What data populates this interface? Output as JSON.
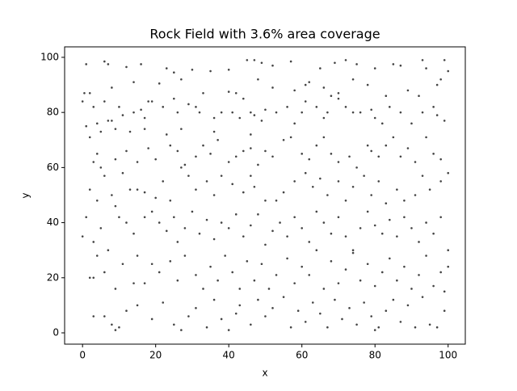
{
  "chart_data": {
    "type": "scatter",
    "title": "Rock Field with 3.6% area coverage",
    "x_label": "x",
    "y_label": "y",
    "color": "#444444",
    "x": [
      1,
      6,
      7,
      12,
      16,
      23,
      25,
      30,
      35,
      40,
      45,
      47,
      49,
      52,
      57,
      65,
      69,
      72,
      75,
      80,
      85,
      87,
      93,
      94,
      99,
      100,
      0.5,
      8,
      14,
      21,
      27,
      33,
      40,
      42,
      48,
      52,
      58,
      61,
      62,
      66,
      68,
      70,
      74,
      78,
      83,
      89,
      92,
      97,
      98,
      2,
      19,
      25,
      44,
      0,
      3,
      6,
      10,
      11,
      14,
      16,
      17,
      18,
      22,
      26,
      29,
      31,
      32,
      36,
      38,
      41,
      43,
      46,
      47,
      49,
      50,
      53,
      56,
      58,
      60,
      61,
      64,
      66,
      67,
      70,
      72,
      74,
      76,
      79,
      80,
      82,
      84,
      87,
      90,
      93,
      96,
      97,
      99,
      1,
      4,
      7,
      9,
      2,
      5,
      8,
      13,
      17,
      23,
      27,
      3,
      4,
      5,
      9,
      12,
      15,
      18,
      20,
      24,
      26,
      28,
      31,
      33,
      35,
      37,
      40,
      42,
      44,
      46,
      48,
      50,
      52,
      55,
      57,
      60,
      62,
      64,
      66,
      68,
      70,
      73,
      75,
      78,
      79,
      81,
      83,
      85,
      87,
      89,
      91,
      94,
      96,
      98,
      36,
      46,
      2,
      6,
      8,
      11,
      13,
      15,
      17,
      20,
      22,
      24,
      27,
      29,
      31,
      34,
      36,
      38,
      41,
      44,
      46,
      47,
      50,
      53,
      55,
      58,
      61,
      63,
      65,
      67,
      70,
      72,
      74,
      77,
      79,
      81,
      83,
      86,
      88,
      91,
      93,
      95,
      98,
      100,
      9,
      4,
      0,
      3,
      5,
      7,
      10,
      12,
      14,
      17,
      19,
      21,
      23,
      25,
      26,
      28,
      30,
      32,
      34,
      36,
      38,
      40,
      42,
      44,
      46,
      48,
      50,
      52,
      54,
      56,
      58,
      60,
      62,
      64,
      66,
      68,
      70,
      72,
      74,
      76,
      78,
      80,
      82,
      84,
      86,
      88,
      90,
      92,
      94,
      96,
      98,
      100,
      1,
      2,
      4,
      6,
      9,
      11,
      14,
      17,
      19,
      21,
      24,
      26,
      28,
      31,
      33,
      35,
      37,
      39,
      41,
      43,
      45,
      47,
      49,
      51,
      53,
      56,
      58,
      60,
      62,
      64,
      66,
      68,
      70,
      72,
      74,
      76,
      78,
      80,
      82,
      84,
      86,
      88,
      90,
      92,
      94,
      96,
      98,
      99,
      100,
      3,
      15,
      3,
      6,
      8,
      9,
      10,
      12,
      15,
      19,
      22,
      25,
      27,
      29,
      31,
      34,
      36,
      38,
      40,
      42,
      43,
      46,
      48,
      50,
      52,
      55,
      57,
      59,
      61,
      63,
      65,
      67,
      69,
      71,
      73,
      75,
      77,
      79,
      80,
      81,
      83,
      85,
      87,
      89,
      91,
      93,
      95,
      97,
      99
    ],
    "values": [
      97.5,
      98.5,
      97.5,
      96.5,
      97.5,
      96,
      94.5,
      95.5,
      95,
      95.5,
      99,
      99,
      98,
      97,
      98.5,
      96,
      98,
      99,
      97.5,
      96,
      97.5,
      97,
      99,
      96,
      99,
      95,
      87,
      89,
      91,
      90.5,
      92,
      87,
      87.5,
      87,
      92,
      89,
      88,
      90,
      91,
      89,
      86,
      87,
      92,
      90,
      86,
      88,
      86,
      90,
      92,
      87,
      84,
      85,
      85,
      84,
      82,
      84,
      82,
      79,
      80,
      81,
      78,
      84,
      82,
      80,
      83,
      82,
      80,
      78,
      80,
      80,
      78,
      80,
      79,
      77,
      81,
      80,
      82,
      76,
      80,
      84,
      82,
      78,
      80,
      85,
      82,
      80,
      80,
      81,
      78,
      76,
      82,
      80,
      76,
      80,
      82,
      79,
      77,
      75,
      76,
      77,
      74,
      71,
      73,
      77,
      73,
      74,
      72,
      74,
      62,
      65,
      60,
      63,
      66,
      62,
      67,
      63,
      68,
      66,
      61,
      64,
      68,
      65,
      70,
      62,
      64,
      66,
      67,
      61,
      66,
      64,
      70,
      71,
      65,
      63,
      68,
      71,
      65,
      62,
      64,
      60,
      68,
      66,
      64,
      68,
      71,
      64,
      67,
      62,
      71,
      65,
      63,
      73,
      72,
      52,
      57,
      50,
      58,
      52,
      52,
      51,
      49,
      55,
      48,
      60,
      57,
      52,
      55,
      50,
      57,
      54,
      51,
      57,
      53,
      48,
      48,
      51,
      55,
      58,
      53,
      56,
      50,
      55,
      48,
      53,
      57,
      50,
      55,
      47,
      52,
      48,
      50,
      57,
      52,
      55,
      58,
      46,
      48,
      35,
      33,
      38,
      30,
      42,
      40,
      36,
      42,
      44,
      40,
      37,
      42,
      33,
      38,
      44,
      36,
      41,
      34,
      40,
      38,
      43,
      35,
      39,
      43,
      32,
      37,
      40,
      35,
      42,
      38,
      33,
      44,
      40,
      36,
      42,
      35,
      30,
      38,
      44,
      39,
      36,
      41,
      35,
      42,
      38,
      33,
      40,
      36,
      42,
      30,
      42,
      20,
      28,
      22,
      16,
      25,
      18,
      18,
      25,
      22,
      26,
      19,
      28,
      21,
      16,
      24,
      19,
      28,
      22,
      16,
      26,
      19,
      25,
      16,
      21,
      27,
      18,
      24,
      21,
      30,
      16,
      26,
      18,
      23,
      29,
      19,
      25,
      17,
      22,
      27,
      19,
      24,
      16,
      21,
      28,
      17,
      22,
      15,
      24,
      20,
      28,
      6,
      6,
      3,
      1,
      2,
      8,
      10,
      5,
      11,
      3,
      1,
      6,
      9,
      2,
      12,
      5,
      1,
      7,
      10,
      3,
      12,
      6,
      9,
      13,
      2,
      8,
      4,
      11,
      7,
      2,
      12,
      5,
      9,
      3,
      11,
      6,
      1,
      2,
      8,
      12,
      4,
      10,
      2,
      13,
      3,
      2,
      8
    ],
    "xlim": [
      -4.9,
      104.7
    ],
    "ylim": [
      -4.1,
      103.8
    ],
    "xticks": [
      0,
      20,
      40,
      60,
      80,
      100
    ],
    "yticks": [
      0,
      20,
      40,
      60,
      80,
      100
    ],
    "grid": false
  }
}
